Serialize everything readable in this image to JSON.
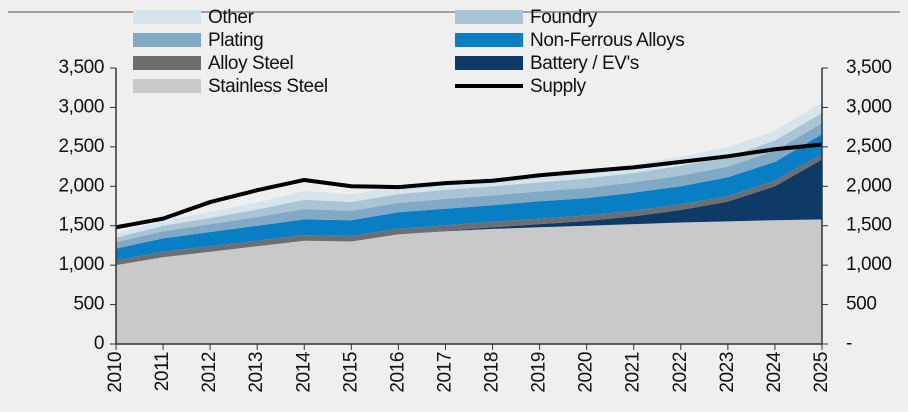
{
  "chart_data": {
    "type": "stacked_area",
    "categories": [
      "2010",
      "2011",
      "2012",
      "2013",
      "2014",
      "2015",
      "2016",
      "2017",
      "2018",
      "2019",
      "2020",
      "2021",
      "2022",
      "2023",
      "2024",
      "2025"
    ],
    "series": [
      {
        "name": "Stainless Steel",
        "color": "#c9c9cb",
        "values": [
          1000,
          1100,
          1170,
          1240,
          1310,
          1300,
          1390,
          1430,
          1460,
          1480,
          1500,
          1520,
          1540,
          1555,
          1570,
          1580
        ]
      },
      {
        "name": "Battery / EV's",
        "color": "#0d3a66",
        "values": [
          0,
          0,
          0,
          0,
          0,
          0,
          0,
          5,
          20,
          40,
          60,
          100,
          160,
          250,
          430,
          760
        ]
      },
      {
        "name": "Alloy Steel",
        "color": "#6d6e70",
        "values": [
          60,
          70,
          70,
          70,
          70,
          70,
          70,
          70,
          70,
          70,
          70,
          70,
          70,
          70,
          70,
          70
        ]
      },
      {
        "name": "Non-Ferrous Alloys",
        "color": "#0a7ec2",
        "values": [
          150,
          170,
          180,
          190,
          200,
          200,
          210,
          210,
          210,
          220,
          220,
          230,
          230,
          240,
          240,
          250
        ]
      },
      {
        "name": "Plating",
        "color": "#7fa9c4",
        "values": [
          80,
          90,
          100,
          110,
          130,
          120,
          120,
          125,
          125,
          125,
          130,
          130,
          135,
          135,
          140,
          140
        ]
      },
      {
        "name": "Foundry",
        "color": "#a9c4d4",
        "values": [
          60,
          70,
          80,
          95,
          120,
          110,
          110,
          115,
          115,
          115,
          120,
          120,
          125,
          125,
          130,
          130
        ]
      },
      {
        "name": "Other",
        "color": "#d6e4ec",
        "values": [
          50,
          60,
          75,
          90,
          110,
          100,
          100,
          105,
          105,
          105,
          110,
          110,
          115,
          120,
          125,
          130
        ]
      },
      {
        "name": "Supply",
        "type": "line",
        "color": "#000000",
        "values": [
          1480,
          1590,
          1800,
          1950,
          2080,
          2000,
          1990,
          2040,
          2070,
          2140,
          2190,
          2240,
          2310,
          2380,
          2470,
          2530
        ]
      }
    ],
    "ylim": [
      0,
      3500
    ],
    "yticks": [
      0,
      500,
      {
        "value": 1000,
        "label": "1,000"
      },
      {
        "value": 1500,
        "label": "1,500"
      },
      {
        "value": 2000,
        "label": "2,000"
      },
      {
        "value": 2500,
        "label": "2,500"
      },
      {
        "value": 3000,
        "label": "3,000"
      },
      {
        "value": 3500,
        "label": "3,500"
      }
    ],
    "y2lim": [
      0,
      3500
    ],
    "y2ticks": [
      {
        "value": 0,
        "label": "-"
      },
      500,
      {
        "value": 1000,
        "label": "1,000"
      },
      {
        "value": 1500,
        "label": "1,500"
      },
      {
        "value": 2000,
        "label": "2,000"
      },
      {
        "value": 2500,
        "label": "2,500"
      },
      {
        "value": 3000,
        "label": "3,000"
      },
      {
        "value": 3500,
        "label": "3,500"
      }
    ]
  }
}
